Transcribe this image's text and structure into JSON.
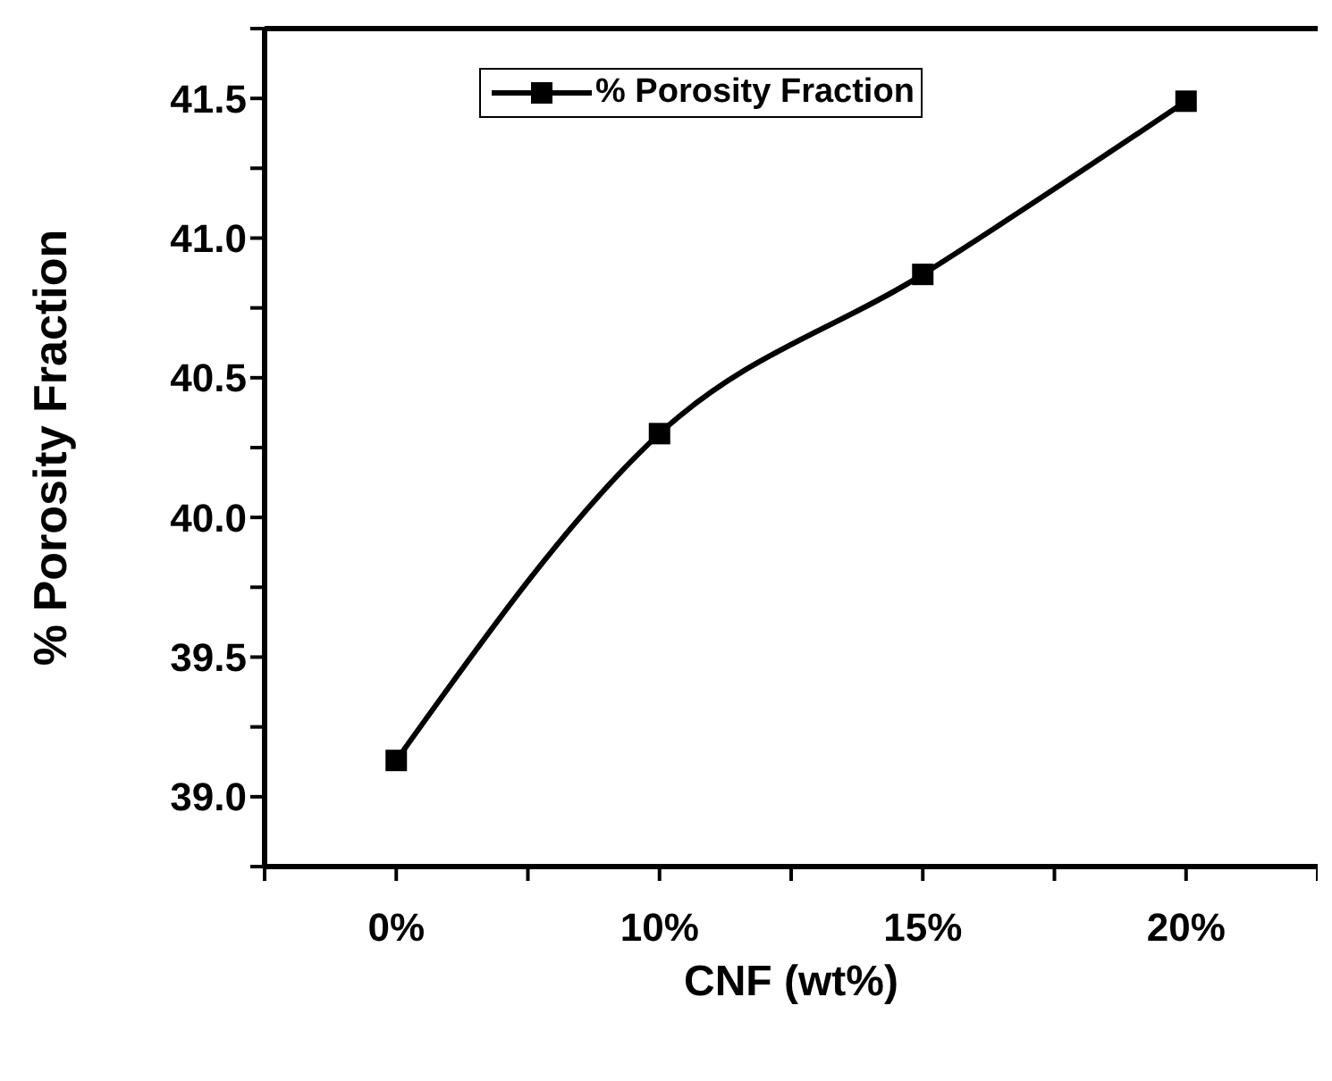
{
  "chart_data": {
    "type": "line",
    "xlabel": "CNF (wt%)",
    "ylabel": "% Porosity Fraction",
    "categories": [
      "0%",
      "10%",
      "15%",
      "20%"
    ],
    "series": [
      {
        "name": "% Porosity Fraction",
        "color": "#000000",
        "values": [
          39.13,
          40.3,
          40.87,
          41.49
        ]
      }
    ],
    "ylim": [
      38.75,
      41.75
    ],
    "yticks": [
      {
        "value": 38.75,
        "label": null
      },
      {
        "value": 39,
        "label": "39.0"
      },
      {
        "value": 39.25,
        "label": null
      },
      {
        "value": 39.5,
        "label": "39.5"
      },
      {
        "value": 39.75,
        "label": null
      },
      {
        "value": 40,
        "label": "40.0"
      },
      {
        "value": 40.25,
        "label": null
      },
      {
        "value": 40.5,
        "label": "40.5"
      },
      {
        "value": 40.75,
        "label": null
      },
      {
        "value": 41,
        "label": "41.0"
      },
      {
        "value": 41.25,
        "label": null
      },
      {
        "value": 41.5,
        "label": "41.5"
      },
      {
        "value": 41.75,
        "label": null
      }
    ],
    "marker": "square",
    "line_style": "solid",
    "grid": false,
    "legend": "top"
  }
}
